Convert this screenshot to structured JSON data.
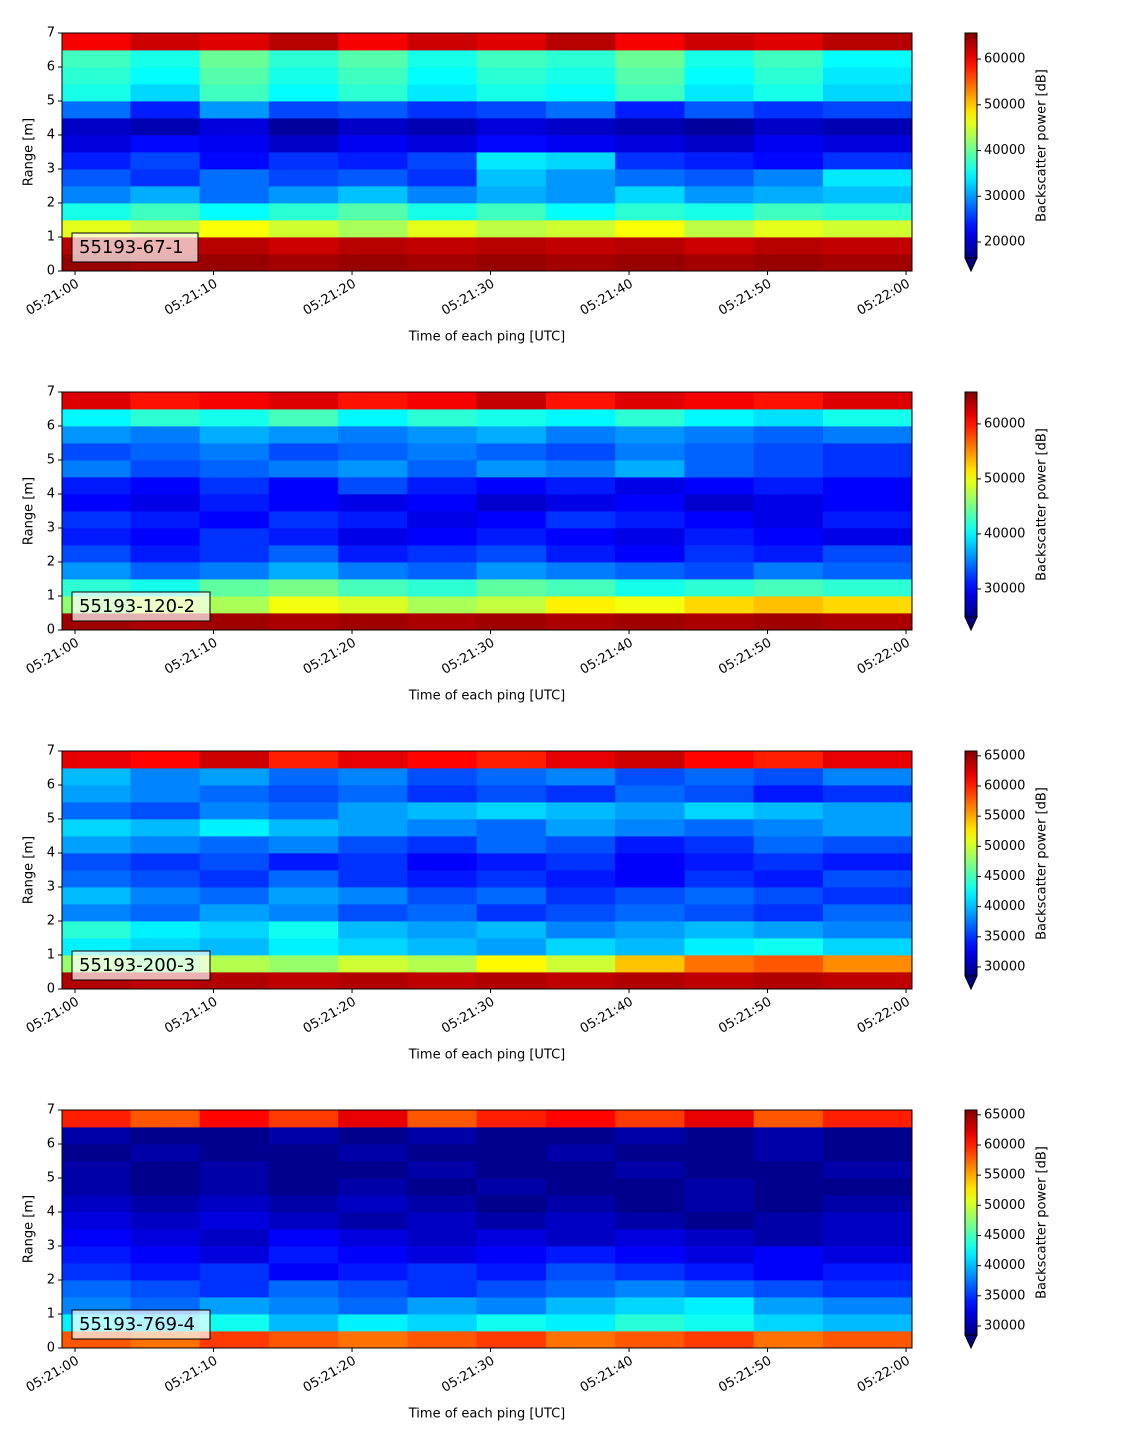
{
  "chart_data": [
    {
      "type": "heatmap",
      "annotation": "55193-67-1",
      "xlabel": "Time of each ping [UTC]",
      "ylabel": "Range [m]",
      "colorbar_label": "Backscatter power [dB]",
      "cmap": "jet",
      "extend": "min",
      "xlim": [
        -0.94,
        60.43
      ],
      "ylim": [
        0,
        7
      ],
      "clim": [
        16500,
        65700
      ],
      "xticks": [
        {
          "value": 0,
          "label": "05:21:00"
        },
        {
          "value": 10,
          "label": "05:21:10"
        },
        {
          "value": 20,
          "label": "05:21:20"
        },
        {
          "value": 30,
          "label": "05:21:30"
        },
        {
          "value": 40,
          "label": "05:21:40"
        },
        {
          "value": 50,
          "label": "05:21:50"
        },
        {
          "value": 60,
          "label": "05:22:00"
        }
      ],
      "yticks": [
        0,
        1,
        2,
        3,
        4,
        5,
        6,
        7
      ],
      "cticks": [
        20000,
        30000,
        40000,
        50000,
        60000
      ],
      "x_bins": [
        -0.94,
        4,
        9,
        14,
        19,
        24,
        29,
        34,
        39,
        44,
        49,
        54,
        60.43
      ],
      "y_bins": [
        0,
        0.5,
        1,
        1.5,
        2,
        2.5,
        3,
        3.5,
        4,
        4.5,
        5,
        5.5,
        6,
        6.5,
        7
      ],
      "z": [
        [
          64500,
          64000,
          64500,
          64000,
          64500,
          64000,
          64500,
          64000,
          64500,
          64000,
          64500,
          64000
        ],
        [
          63000,
          62500,
          63000,
          62000,
          63000,
          62500,
          63000,
          62500,
          63000,
          62000,
          63000,
          62500
        ],
        [
          46000,
          44000,
          47000,
          45000,
          43000,
          46000,
          44000,
          45000,
          47000,
          44000,
          46000,
          45000
        ],
        [
          36000,
          38000,
          35000,
          37000,
          39000,
          36000,
          38000,
          35000,
          37000,
          36000,
          38000,
          37000
        ],
        [
          29000,
          31000,
          28000,
          30000,
          32000,
          29000,
          31000,
          30000,
          33000,
          30000,
          31000,
          32000
        ],
        [
          27000,
          25000,
          28000,
          26000,
          27000,
          25000,
          32000,
          30000,
          28000,
          27000,
          29000,
          34000
        ],
        [
          24000,
          26000,
          23000,
          25000,
          24000,
          26000,
          34000,
          33000,
          25000,
          24000,
          23000,
          25000
        ],
        [
          21000,
          23000,
          22000,
          20000,
          22000,
          21000,
          23000,
          22000,
          21000,
          20000,
          22000,
          21000
        ],
        [
          20000,
          19000,
          21000,
          18000,
          20000,
          19000,
          21000,
          20000,
          19000,
          18000,
          20000,
          19000
        ],
        [
          28000,
          24000,
          30000,
          26000,
          27000,
          25000,
          26000,
          28000,
          24000,
          27000,
          25000,
          26000
        ],
        [
          36000,
          33000,
          38000,
          35000,
          37000,
          34000,
          36000,
          35000,
          38000,
          34000,
          36000,
          33000
        ],
        [
          37000,
          35000,
          39000,
          36000,
          38000,
          35000,
          37000,
          36000,
          39000,
          35000,
          37000,
          34000
        ],
        [
          38000,
          36000,
          40000,
          37000,
          39000,
          36000,
          38000,
          37000,
          40000,
          36000,
          38000,
          35000
        ],
        [
          60000,
          62000,
          61000,
          63000,
          60000,
          62000,
          61000,
          63000,
          60000,
          62000,
          61000,
          63000
        ]
      ]
    },
    {
      "type": "heatmap",
      "annotation": "55193-120-2",
      "xlabel": "Time of each ping [UTC]",
      "ylabel": "Range [m]",
      "colorbar_label": "Backscatter power [dB]",
      "cmap": "jet",
      "extend": "min",
      "xlim": [
        -0.94,
        60.43
      ],
      "ylim": [
        0,
        7
      ],
      "clim": [
        24900,
        65800
      ],
      "xticks": [
        {
          "value": 0,
          "label": "05:21:00"
        },
        {
          "value": 10,
          "label": "05:21:10"
        },
        {
          "value": 20,
          "label": "05:21:20"
        },
        {
          "value": 30,
          "label": "05:21:30"
        },
        {
          "value": 40,
          "label": "05:21:40"
        },
        {
          "value": 50,
          "label": "05:21:50"
        },
        {
          "value": 60,
          "label": "05:22:00"
        }
      ],
      "yticks": [
        0,
        1,
        2,
        3,
        4,
        5,
        6,
        7
      ],
      "cticks": [
        30000,
        40000,
        50000,
        60000
      ],
      "x_bins": [
        -0.94,
        4,
        9,
        14,
        19,
        24,
        29,
        34,
        39,
        44,
        49,
        54,
        60.43
      ],
      "y_bins": [
        0,
        0.5,
        1,
        1.5,
        2,
        2.5,
        3,
        3.5,
        4,
        4.5,
        5,
        5.5,
        6,
        6.5,
        7
      ],
      "z": [
        [
          64500,
          64000,
          64500,
          64000,
          64500,
          64000,
          64500,
          64000,
          64500,
          64000,
          64500,
          64000
        ],
        [
          46000,
          48000,
          47000,
          50000,
          49000,
          47000,
          48000,
          51000,
          50000,
          52000,
          53000,
          52000
        ],
        [
          42000,
          41000,
          44000,
          45000,
          43000,
          42000,
          44000,
          43000,
          41000,
          42000,
          43000,
          42000
        ],
        [
          36000,
          34000,
          35000,
          37000,
          35000,
          34000,
          36000,
          35000,
          34000,
          33000,
          35000,
          34000
        ],
        [
          33000,
          31000,
          32000,
          34000,
          31000,
          32000,
          33000,
          31000,
          30000,
          32000,
          31000,
          33000
        ],
        [
          31000,
          30000,
          32000,
          31000,
          29000,
          30000,
          31000,
          30000,
          29000,
          31000,
          30000,
          29000
        ],
        [
          32000,
          31000,
          30000,
          32000,
          31000,
          29000,
          30000,
          32000,
          31000,
          30000,
          29000,
          31000
        ],
        [
          30000,
          29000,
          31000,
          30000,
          29000,
          30000,
          28000,
          29000,
          30000,
          28000,
          29000,
          30000
        ],
        [
          31000,
          30000,
          32000,
          30000,
          33000,
          31000,
          30000,
          31000,
          29000,
          30000,
          31000,
          30000
        ],
        [
          35000,
          33000,
          34000,
          35000,
          36000,
          34000,
          36000,
          35000,
          37000,
          34000,
          33000,
          32000
        ],
        [
          33000,
          34000,
          35000,
          33000,
          34000,
          35000,
          34000,
          33000,
          35000,
          34000,
          33000,
          32000
        ],
        [
          36000,
          35000,
          37000,
          36000,
          35000,
          36000,
          37000,
          35000,
          36000,
          35000,
          34000,
          35000
        ],
        [
          40000,
          42000,
          41000,
          43000,
          40000,
          42000,
          41000,
          40000,
          42000,
          40000,
          39000,
          41000
        ],
        [
          62000,
          60000,
          61000,
          62000,
          60000,
          61000,
          63000,
          60000,
          62000,
          61000,
          60000,
          62000
        ]
      ]
    },
    {
      "type": "heatmap",
      "annotation": "55193-200-3",
      "xlabel": "Time of each ping [UTC]",
      "ylabel": "Range [m]",
      "colorbar_label": "Backscatter power [dB]",
      "cmap": "jet",
      "extend": "min",
      "xlim": [
        -0.94,
        60.43
      ],
      "ylim": [
        0,
        7
      ],
      "clim": [
        28500,
        65800
      ],
      "xticks": [
        {
          "value": 0,
          "label": "05:21:00"
        },
        {
          "value": 10,
          "label": "05:21:10"
        },
        {
          "value": 20,
          "label": "05:21:20"
        },
        {
          "value": 30,
          "label": "05:21:30"
        },
        {
          "value": 40,
          "label": "05:21:40"
        },
        {
          "value": 50,
          "label": "05:21:50"
        },
        {
          "value": 60,
          "label": "05:22:00"
        }
      ],
      "yticks": [
        0,
        1,
        2,
        3,
        4,
        5,
        6,
        7
      ],
      "cticks": [
        30000,
        35000,
        40000,
        45000,
        50000,
        55000,
        60000,
        65000
      ],
      "x_bins": [
        -0.94,
        4,
        9,
        14,
        19,
        24,
        29,
        34,
        39,
        44,
        49,
        54,
        60.43
      ],
      "y_bins": [
        0,
        0.5,
        1,
        1.5,
        2,
        2.5,
        3,
        3.5,
        4,
        4.5,
        5,
        5.5,
        6,
        6.5,
        7
      ],
      "z": [
        [
          64000,
          63500,
          64000,
          63500,
          64000,
          63500,
          64000,
          63500,
          64000,
          63500,
          64000,
          63500
        ],
        [
          48000,
          47000,
          49000,
          48000,
          50000,
          49000,
          52000,
          50000,
          54000,
          57000,
          58000,
          56000
        ],
        [
          42000,
          41000,
          40000,
          42000,
          41000,
          40000,
          39000,
          41000,
          40000,
          42000,
          43000,
          41000
        ],
        [
          44000,
          42000,
          41000,
          43000,
          40000,
          39000,
          40000,
          38000,
          39000,
          40000,
          39000,
          38000
        ],
        [
          38000,
          37000,
          39000,
          38000,
          36000,
          37000,
          35000,
          36000,
          37000,
          36000,
          35000,
          37000
        ],
        [
          40000,
          38000,
          37000,
          39000,
          38000,
          36000,
          37000,
          35000,
          36000,
          37000,
          36000,
          35000
        ],
        [
          37000,
          36000,
          35000,
          37000,
          35000,
          34000,
          35000,
          34000,
          33000,
          35000,
          34000,
          36000
        ],
        [
          36000,
          35000,
          36000,
          34000,
          35000,
          33000,
          34000,
          35000,
          33000,
          34000,
          35000,
          34000
        ],
        [
          39000,
          38000,
          37000,
          38000,
          36000,
          35000,
          37000,
          36000,
          34000,
          35000,
          37000,
          36000
        ],
        [
          41000,
          40000,
          42000,
          40000,
          39000,
          38000,
          37000,
          39000,
          38000,
          37000,
          38000,
          39000
        ],
        [
          37000,
          36000,
          38000,
          37000,
          39000,
          40000,
          41000,
          40000,
          39000,
          41000,
          40000,
          39000
        ],
        [
          39000,
          38000,
          37000,
          36000,
          37000,
          35000,
          36000,
          35000,
          37000,
          36000,
          34000,
          35000
        ],
        [
          40000,
          38000,
          39000,
          37000,
          38000,
          36000,
          37000,
          38000,
          36000,
          37000,
          36000,
          38000
        ],
        [
          62000,
          61000,
          63000,
          60000,
          62000,
          61000,
          60000,
          62000,
          63000,
          61000,
          60000,
          62000
        ]
      ]
    },
    {
      "type": "heatmap",
      "annotation": "55193-769-4",
      "xlabel": "Time of each ping [UTC]",
      "ylabel": "Range [m]",
      "colorbar_label": "Backscatter power [dB]",
      "cmap": "jet",
      "extend": "min",
      "xlim": [
        -0.94,
        60.43
      ],
      "ylim": [
        0,
        7
      ],
      "clim": [
        28500,
        65800
      ],
      "xticks": [
        {
          "value": 0,
          "label": "05:21:00"
        },
        {
          "value": 10,
          "label": "05:21:10"
        },
        {
          "value": 20,
          "label": "05:21:20"
        },
        {
          "value": 30,
          "label": "05:21:30"
        },
        {
          "value": 40,
          "label": "05:21:40"
        },
        {
          "value": 50,
          "label": "05:21:50"
        },
        {
          "value": 60,
          "label": "05:22:00"
        }
      ],
      "yticks": [
        0,
        1,
        2,
        3,
        4,
        5,
        6,
        7
      ],
      "cticks": [
        30000,
        35000,
        40000,
        45000,
        50000,
        55000,
        60000,
        65000
      ],
      "x_bins": [
        -0.94,
        4,
        9,
        14,
        19,
        24,
        29,
        34,
        39,
        44,
        49,
        54,
        60.43
      ],
      "y_bins": [
        0,
        0.5,
        1,
        1.5,
        2,
        2.5,
        3,
        3.5,
        4,
        4.5,
        5,
        5.5,
        6,
        6.5,
        7
      ],
      "z": [
        [
          58000,
          57000,
          59000,
          58000,
          57000,
          58000,
          59000,
          57000,
          58000,
          59000,
          57000,
          58000
        ],
        [
          42000,
          41000,
          43000,
          40000,
          42000,
          41000,
          43000,
          42000,
          44000,
          43000,
          41000,
          40000
        ],
        [
          38000,
          37000,
          39000,
          38000,
          37000,
          39000,
          38000,
          40000,
          41000,
          42000,
          39000,
          38000
        ],
        [
          37000,
          36000,
          35000,
          37000,
          36000,
          35000,
          36000,
          37000,
          38000,
          37000,
          36000,
          35000
        ],
        [
          35000,
          34000,
          35000,
          33000,
          34000,
          35000,
          34000,
          36000,
          35000,
          34000,
          33000,
          34000
        ],
        [
          34000,
          33000,
          32000,
          34000,
          33000,
          32000,
          33000,
          34000,
          33000,
          32000,
          33000,
          32000
        ],
        [
          33000,
          32000,
          31000,
          33000,
          32000,
          31000,
          32000,
          31000,
          32000,
          31000,
          30000,
          31000
        ],
        [
          32000,
          31000,
          32000,
          31000,
          30000,
          31000,
          30000,
          31000,
          30000,
          29000,
          30000,
          31000
        ],
        [
          31000,
          30000,
          31000,
          30000,
          31000,
          30000,
          29000,
          30000,
          29000,
          30000,
          29000,
          30000
        ],
        [
          30000,
          29000,
          30000,
          29000,
          30000,
          29000,
          30000,
          29000,
          29000,
          30000,
          29000,
          29000
        ],
        [
          30000,
          29000,
          30000,
          29000,
          29000,
          30000,
          29000,
          29000,
          30000,
          29000,
          29000,
          30000
        ],
        [
          29000,
          30000,
          29000,
          29000,
          30000,
          29000,
          29000,
          30000,
          29000,
          29000,
          30000,
          29000
        ],
        [
          30000,
          29000,
          29000,
          30000,
          29000,
          30000,
          29000,
          29000,
          30000,
          29000,
          30000,
          29000
        ],
        [
          60000,
          58000,
          61000,
          59000,
          62000,
          58000,
          60000,
          61000,
          59000,
          62000,
          58000,
          60000
        ]
      ]
    }
  ]
}
